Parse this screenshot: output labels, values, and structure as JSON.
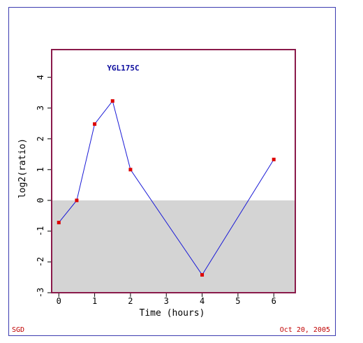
{
  "footer": {
    "left": "SGD",
    "right": "Oct 20, 2005"
  },
  "chart_data": {
    "type": "line",
    "title": "YGL175C",
    "xlabel": "Time (hours)",
    "ylabel": "log2(ratio)",
    "xlim": [
      -0.2,
      6.6
    ],
    "ylim": [
      -3,
      4.9
    ],
    "xticks": [
      "0",
      "1",
      "2",
      "3",
      "4",
      "5",
      "6"
    ],
    "yticks": [
      "4",
      "3",
      "2",
      "1",
      "0",
      "-1",
      "-2",
      "-3"
    ],
    "shade_below_zero": true,
    "series": [
      {
        "x": [
          0,
          0.5,
          1,
          1.5,
          2,
          4,
          6
        ],
        "y": [
          -0.72,
          0.0,
          2.48,
          3.23,
          1.0,
          -2.42,
          1.33
        ]
      }
    ],
    "colors": {
      "line": "#1a1ad6",
      "marker": "#dd0000",
      "plot_border": "#8a1a4a",
      "shade": "#d4d4d4",
      "title": "#0b0b9e"
    }
  }
}
